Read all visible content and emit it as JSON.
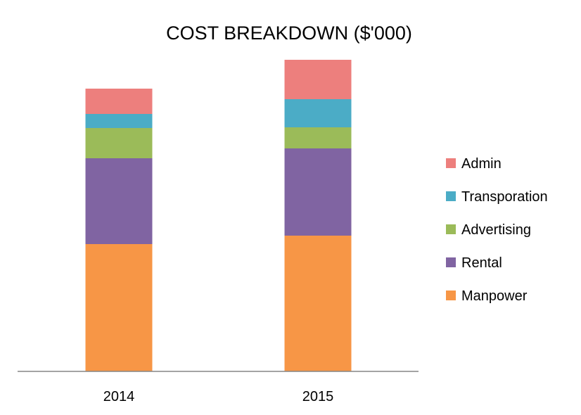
{
  "chart_data": {
    "type": "bar",
    "stacked": true,
    "title": "COST BREAKDOWN ($'000)",
    "xlabel": "",
    "ylabel": "",
    "categories": [
      "2014",
      "2015"
    ],
    "ylim": [
      0,
      440
    ],
    "grid": false,
    "legend_position": "right",
    "series": [
      {
        "name": "Manpower",
        "values": [
          181,
          193
        ],
        "color": "#f79646"
      },
      {
        "name": "Rental",
        "values": [
          122,
          124
        ],
        "color": "#8064a2"
      },
      {
        "name": "Advertising",
        "values": [
          43,
          30
        ],
        "color": "#9bbb59"
      },
      {
        "name": "Transporation",
        "values": [
          20,
          40
        ],
        "color": "#4bacc6"
      },
      {
        "name": "Admin",
        "values": [
          36,
          56
        ],
        "color": "#ed7f7d"
      }
    ],
    "legend_order": [
      "Admin",
      "Transporation",
      "Advertising",
      "Rental",
      "Manpower"
    ]
  }
}
